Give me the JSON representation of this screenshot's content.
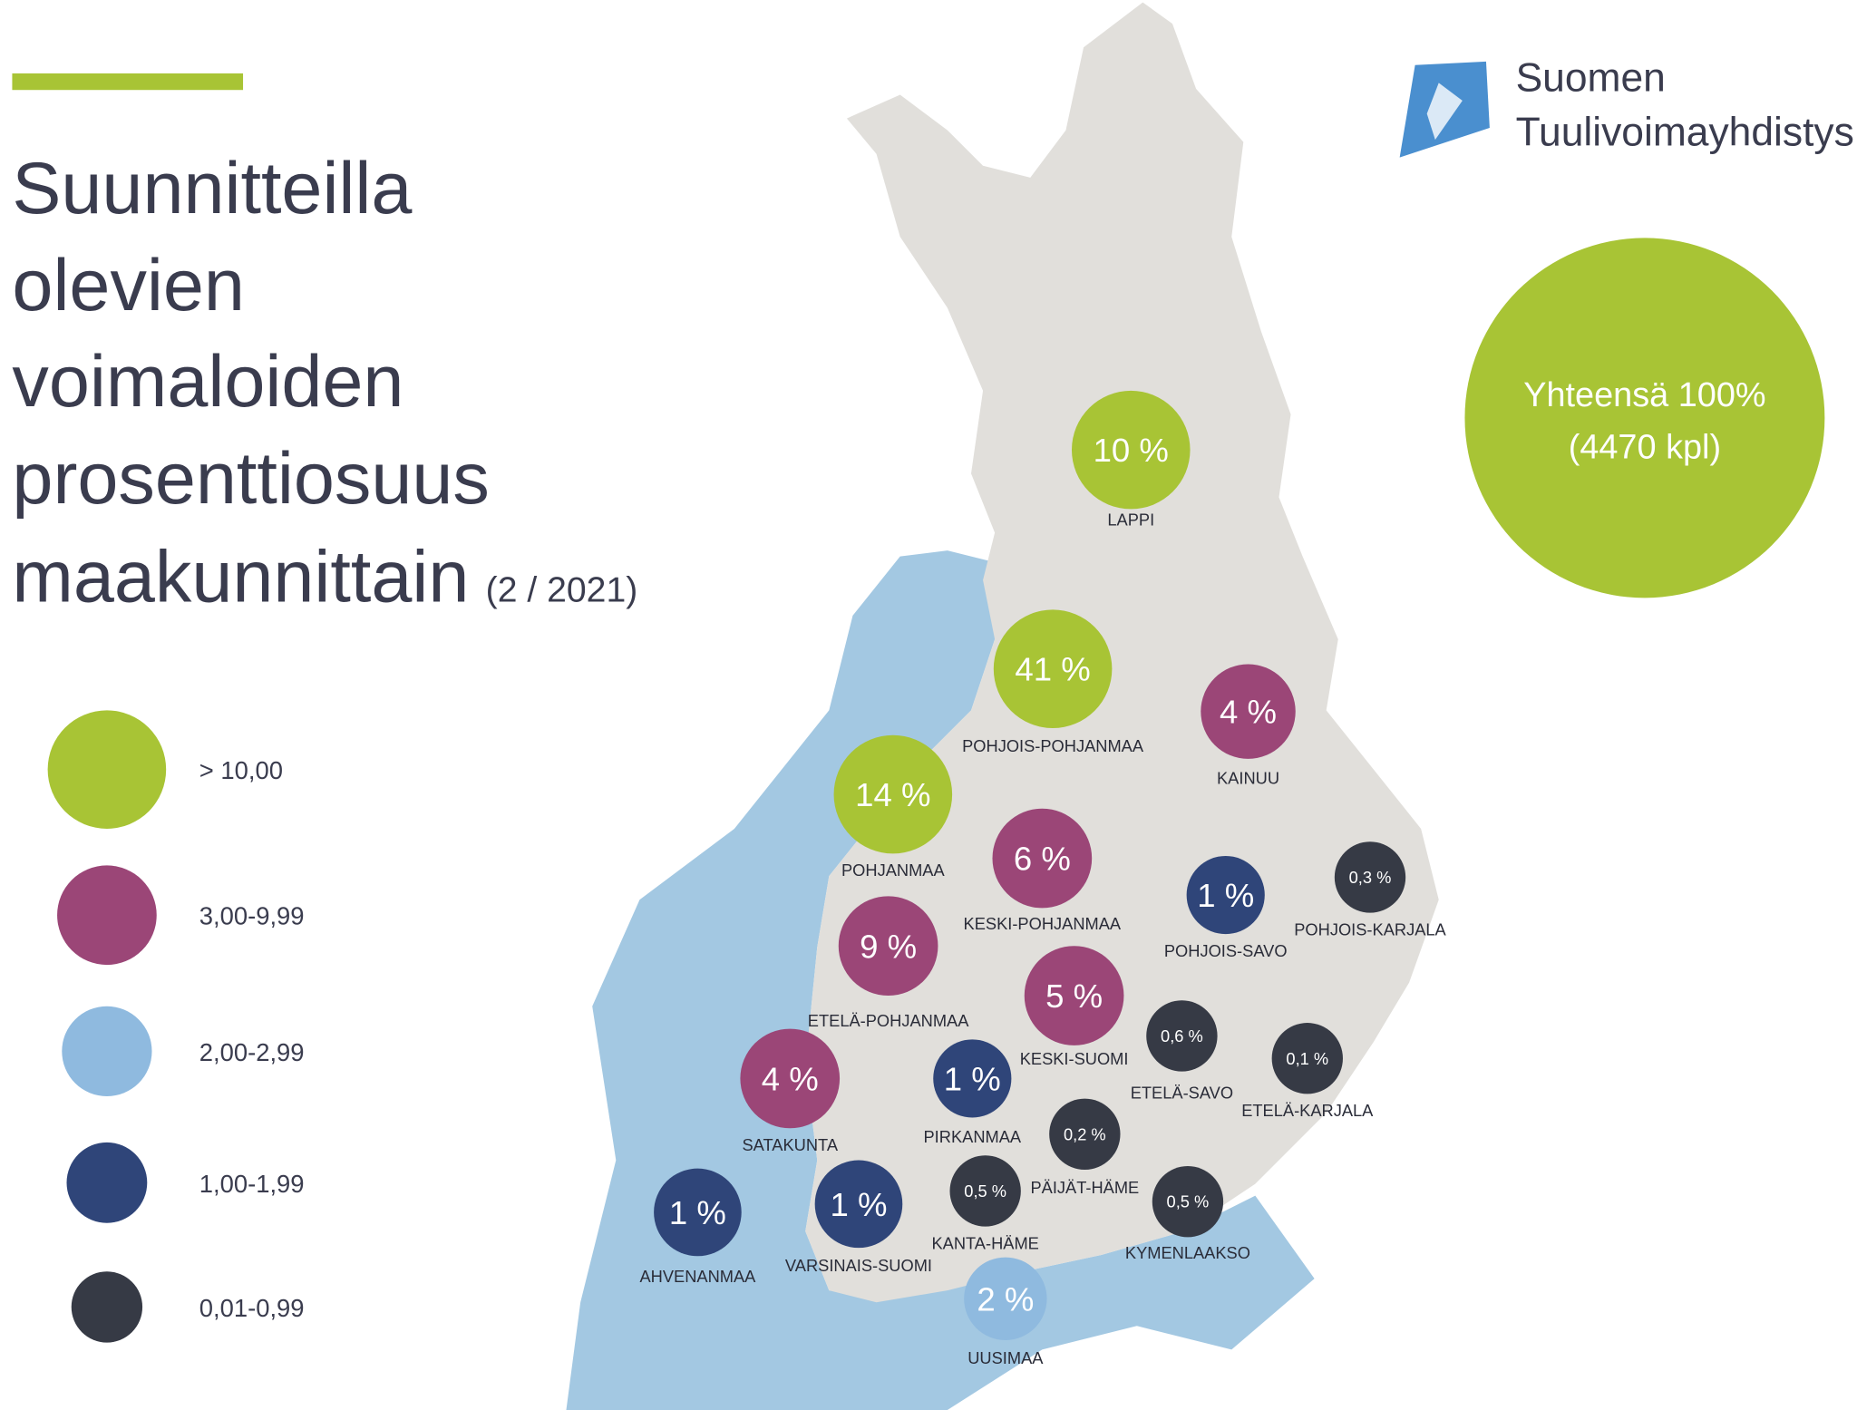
{
  "title": {
    "lines": [
      "Suunnitteilla",
      "olevien",
      "voimaloiden",
      "prosenttiosuus",
      "maakunnittain"
    ],
    "date": "(2 / 2021)"
  },
  "logo": {
    "line1": "Suomen",
    "line2": "Tuulivoimayhdistys"
  },
  "total": {
    "line1": "Yhteensä 100%",
    "line2": "(4470 kpl)"
  },
  "legend": [
    {
      "label": "> 10,00",
      "color": "#a8c435"
    },
    {
      "label": "3,00-9,99",
      "color": "#9b4677"
    },
    {
      "label": "2,00-2,99",
      "color": "#8fbadf"
    },
    {
      "label": "1,00-1,99",
      "color": "#2f4579"
    },
    {
      "label": "0,01-0,99",
      "color": "#363a45"
    }
  ],
  "regions": [
    {
      "name": "LAPPI",
      "value": "10 %",
      "color": "#a8c435"
    },
    {
      "name": "POHJOIS-POHJANMAA",
      "value": "41 %",
      "color": "#a8c435"
    },
    {
      "name": "KAINUU",
      "value": "4 %",
      "color": "#9b4677"
    },
    {
      "name": "POHJANMAA",
      "value": "14 %",
      "color": "#a8c435"
    },
    {
      "name": "KESKI-POHJANMAA",
      "value": "6 %",
      "color": "#9b4677"
    },
    {
      "name": "POHJOIS-SAVO",
      "value": "1 %",
      "color": "#2f4579"
    },
    {
      "name": "POHJOIS-KARJALA",
      "value": "0,3 %",
      "color": "#363a45"
    },
    {
      "name": "ETELÄ-POHJANMAA",
      "value": "9 %",
      "color": "#9b4677"
    },
    {
      "name": "KESKI-SUOMI",
      "value": "5 %",
      "color": "#9b4677"
    },
    {
      "name": "ETELÄ-SAVO",
      "value": "0,6 %",
      "color": "#363a45"
    },
    {
      "name": "ETELÄ-KARJALA",
      "value": "0,1 %",
      "color": "#363a45"
    },
    {
      "name": "SATAKUNTA",
      "value": "4 %",
      "color": "#9b4677"
    },
    {
      "name": "PIRKANMAA",
      "value": "1 %",
      "color": "#2f4579"
    },
    {
      "name": "PÄIJÄT-HÄME",
      "value": "0,2 %",
      "color": "#363a45"
    },
    {
      "name": "KANTA-HÄME",
      "value": "0,5 %",
      "color": "#363a45"
    },
    {
      "name": "KYMENLAAKSO",
      "value": "0,5 %",
      "color": "#363a45"
    },
    {
      "name": "AHVENANMAA",
      "value": "1 %",
      "color": "#2f4579"
    },
    {
      "name": "VARSINAIS-SUOMI",
      "value": "1 %",
      "color": "#2f4579"
    },
    {
      "name": "UUSIMAA",
      "value": "2 %",
      "color": "#8fbadf"
    }
  ]
}
